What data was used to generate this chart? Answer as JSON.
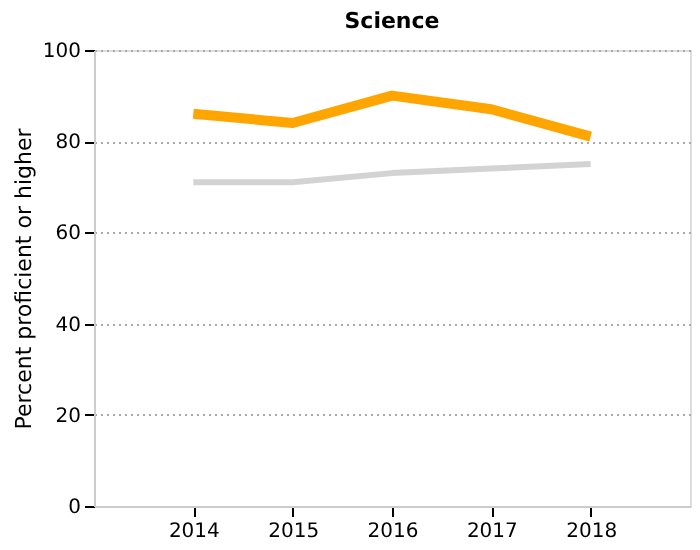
{
  "chart_data": {
    "type": "line",
    "title": "Science",
    "ylabel": "Percent proficient or higher",
    "x": [
      2014,
      2015,
      2016,
      2017,
      2018
    ],
    "series": [
      {
        "color": "#ffa500",
        "values": [
          86,
          84,
          90,
          87,
          81
        ]
      },
      {
        "color": "#d3d3d3",
        "values": [
          71,
          71,
          73,
          74,
          75
        ]
      }
    ],
    "xlim": [
      2013,
      2019
    ],
    "xticks": [
      2014,
      2015,
      2016,
      2017,
      2018
    ],
    "ylim": [
      0,
      100
    ],
    "yticks": [
      0,
      20,
      40,
      60,
      80,
      100
    ],
    "grid": "y",
    "marker": "none",
    "line_style": "solid"
  }
}
